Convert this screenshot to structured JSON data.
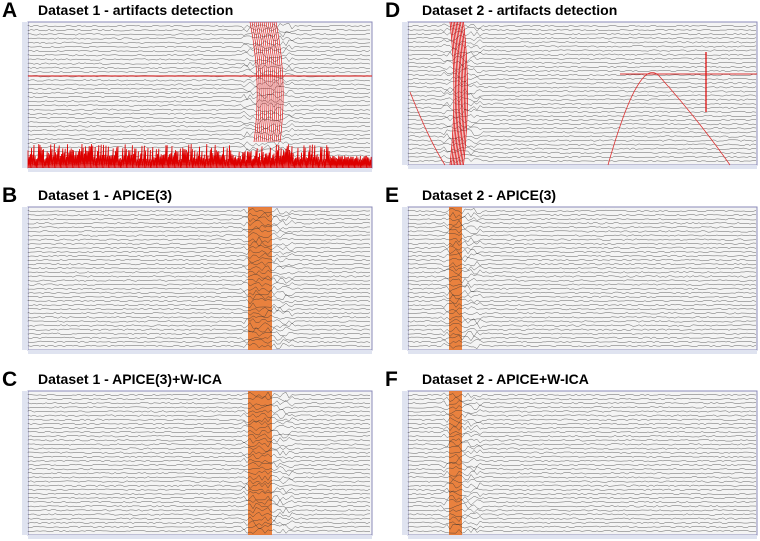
{
  "panels": [
    {
      "letter": "A",
      "title": "Dataset 1 - artifacts detection"
    },
    {
      "letter": "B",
      "title": "Dataset 1 - APICE(3)"
    },
    {
      "letter": "C",
      "title": "Dataset 1 - APICE(3)+W-ICA"
    },
    {
      "letter": "D",
      "title": "Dataset 2 - artifacts detection"
    },
    {
      "letter": "E",
      "title": "Dataset 2 - APICE(3)"
    },
    {
      "letter": "F",
      "title": "Dataset 2 - APICE+W-ICA"
    }
  ]
}
